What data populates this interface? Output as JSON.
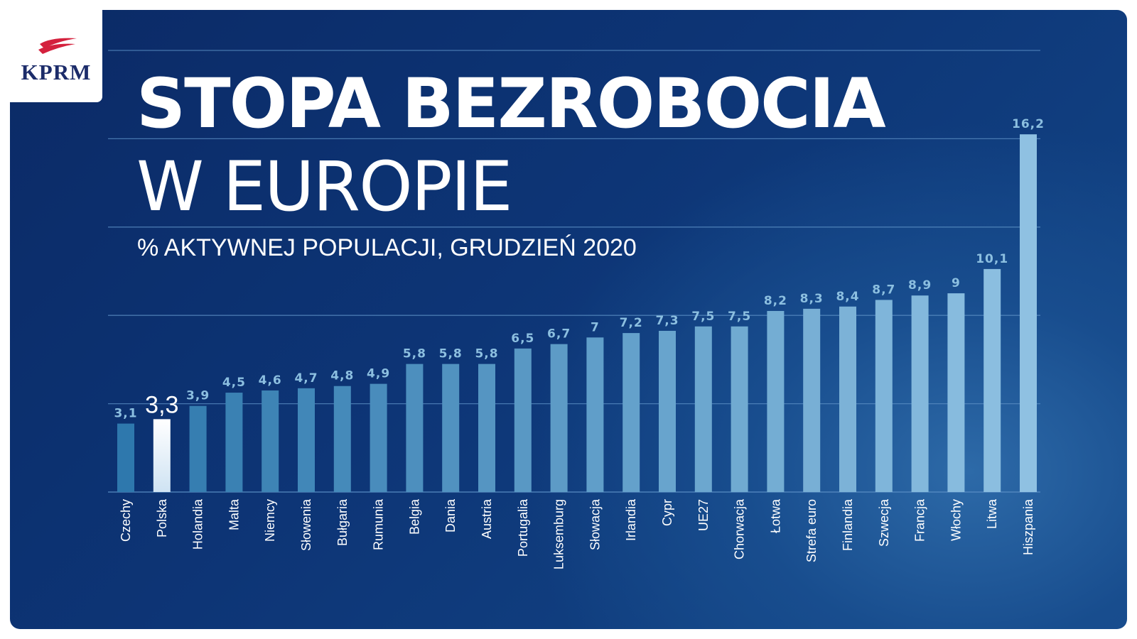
{
  "logo": {
    "text": "KPRM"
  },
  "header": {
    "title_line1": "STOPA BEZROBOCIA",
    "title_line2": "W EUROPIE",
    "subtitle": "% AKTYWNEJ POPULACJI, GRUDZIEŃ 2020"
  },
  "colors": {
    "bar_low": "#2e78ad",
    "bar_high": "#8fc1e2",
    "highlight": "#ffffff",
    "label": "#8cbfe0",
    "grid": "#5b8fc4"
  },
  "chart_data": {
    "type": "bar",
    "title": "STOPA BEZROBOCIA W EUROPIE",
    "subtitle": "% AKTYWNEJ POPULACJI, GRUDZIEŃ 2020",
    "xlabel": "",
    "ylabel": "",
    "ylim": [
      0,
      20
    ],
    "gridlines": [
      0,
      4,
      8,
      12,
      16,
      20
    ],
    "highlight_category": "Polska",
    "categories": [
      "Czechy",
      "Polska",
      "Holandia",
      "Malta",
      "Niemcy",
      "Słowenia",
      "Bułgaria",
      "Rumunia",
      "Belgia",
      "Dania",
      "Austria",
      "Portugalia",
      "Luksemburg",
      "Słowacja",
      "Irlandia",
      "Cypr",
      "UE27",
      "Chorwacja",
      "Łotwa",
      "Strefa euro",
      "Finlandia",
      "Szwecja",
      "Francja",
      "Włochy",
      "Litwa",
      "Hiszpania"
    ],
    "values": [
      3.1,
      3.3,
      3.9,
      4.5,
      4.6,
      4.7,
      4.8,
      4.9,
      5.8,
      5.8,
      5.8,
      6.5,
      6.7,
      7,
      7.2,
      7.3,
      7.5,
      7.5,
      8.2,
      8.3,
      8.4,
      8.7,
      8.9,
      9,
      10.1,
      16.2
    ],
    "value_labels": [
      "3,1",
      "3,3",
      "3,9",
      "4,5",
      "4,6",
      "4,7",
      "4,8",
      "4,9",
      "5,8",
      "5,8",
      "5,8",
      "6,5",
      "6,7",
      "7",
      "7,2",
      "7,3",
      "7,5",
      "7,5",
      "8,2",
      "8,3",
      "8,4",
      "8,7",
      "8,9",
      "9",
      "10,1",
      "16,2"
    ]
  }
}
